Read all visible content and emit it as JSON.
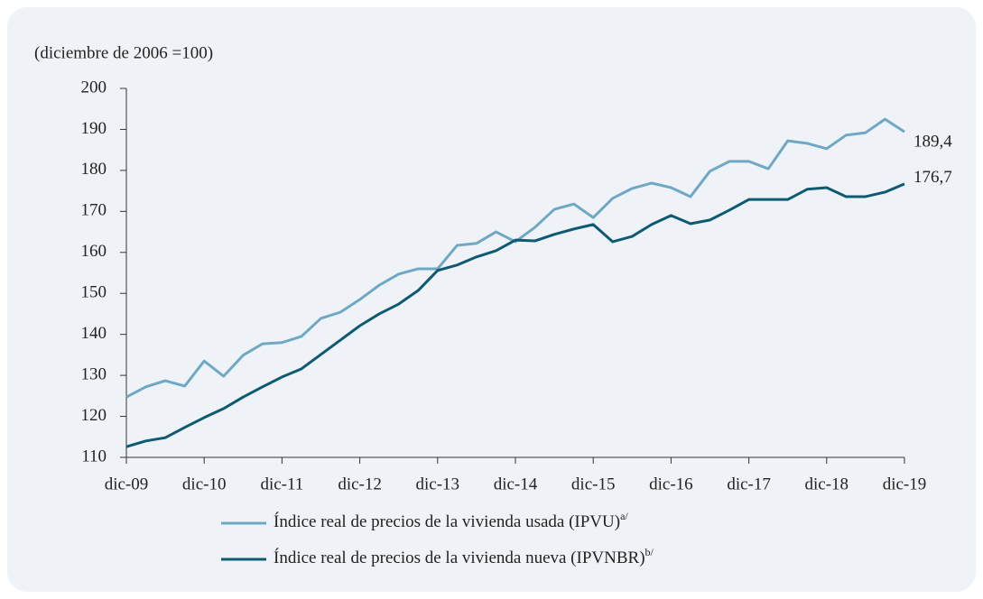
{
  "chart_data": {
    "type": "line",
    "title": "(diciembre de 2006 =100)",
    "categories": [
      "dic-09",
      null,
      null,
      null,
      "dic-10",
      null,
      null,
      null,
      "dic-11",
      null,
      null,
      null,
      "dic-12",
      null,
      null,
      null,
      "dic-13",
      null,
      null,
      null,
      "dic-14",
      null,
      null,
      null,
      "dic-15",
      null,
      null,
      null,
      "dic-16",
      null,
      null,
      null,
      "dic-17",
      null,
      null,
      null,
      "dic-18",
      null,
      null,
      null,
      "dic-19"
    ],
    "ylim": [
      110,
      200
    ],
    "yticks": [
      110,
      120,
      130,
      140,
      150,
      160,
      170,
      180,
      190,
      200
    ],
    "series": [
      {
        "name": "Índice real de precios de la vivienda usada (IPVU)",
        "footnote": "a/",
        "color": "#6fa8c4",
        "values": [
          124.7,
          127.2,
          128.7,
          127.4,
          133.5,
          129.8,
          134.9,
          137.7,
          138,
          139.5,
          143.9,
          145.4,
          148.5,
          152,
          154.7,
          156,
          156,
          161.7,
          162.2,
          165,
          162.6,
          166.1,
          170.5,
          171.8,
          168.5,
          173.2,
          175.6,
          176.9,
          175.8,
          173.6,
          179.8,
          182.2,
          182.2,
          180.4,
          187.2,
          186.6,
          185.3,
          188.6,
          189.2,
          192.5,
          189.4
        ],
        "value_labels": [
          null,
          null,
          null,
          null,
          null,
          null,
          null,
          null,
          null,
          null,
          null,
          null,
          null,
          null,
          null,
          null,
          null,
          null,
          null,
          null,
          null,
          null,
          null,
          null,
          null,
          null,
          null,
          null,
          null,
          null,
          null,
          null,
          null,
          null,
          null,
          null,
          null,
          null,
          null,
          null,
          "189,4"
        ]
      },
      {
        "name": "Índice real de precios de la vivienda nueva (IPVNBR)",
        "footnote": "b/",
        "color": "#0e5a73",
        "values": [
          112.6,
          114,
          114.8,
          117.3,
          119.7,
          121.9,
          124.7,
          127.2,
          129.6,
          131.6,
          135.1,
          138.6,
          142.1,
          145,
          147.4,
          150.7,
          155.6,
          156.9,
          158.9,
          160.4,
          163,
          162.8,
          164.4,
          165.7,
          166.8,
          162.6,
          163.9,
          166.8,
          169,
          167,
          167.9,
          170.3,
          172.9,
          172.9,
          172.9,
          175.4,
          175.8,
          173.6,
          173.6,
          174.7,
          176.7
        ],
        "value_labels": [
          null,
          null,
          null,
          null,
          null,
          null,
          null,
          null,
          null,
          null,
          null,
          null,
          null,
          null,
          null,
          null,
          null,
          null,
          null,
          null,
          null,
          null,
          null,
          null,
          null,
          null,
          null,
          null,
          null,
          null,
          null,
          null,
          null,
          null,
          null,
          null,
          null,
          null,
          null,
          null,
          "176,7"
        ]
      }
    ]
  }
}
